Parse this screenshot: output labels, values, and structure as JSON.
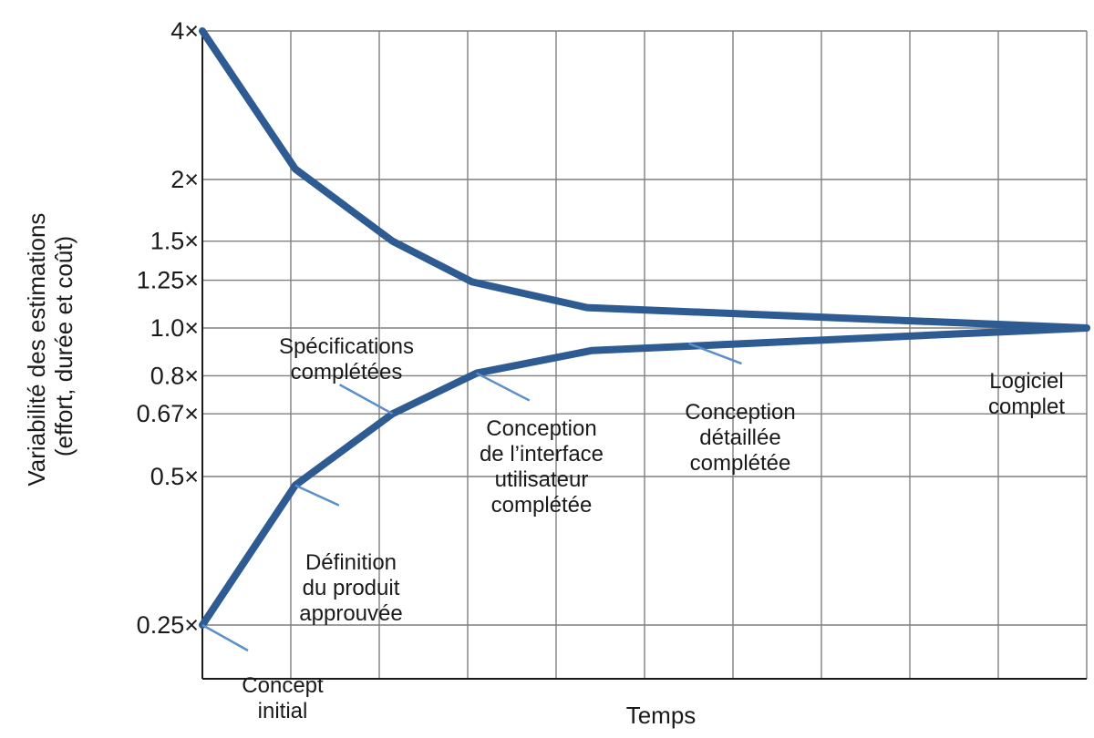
{
  "chart_data": {
    "type": "line",
    "xlabel": "Temps",
    "ylabel_lines": [
      "Variabilité des estimations",
      "(effort, durée et coût)"
    ],
    "y_scale": "log",
    "ylim": [
      0.25,
      4
    ],
    "y_ticks": [
      4,
      2,
      1.5,
      1.25,
      1.0,
      0.8,
      0.67,
      0.5,
      0.25
    ],
    "y_tick_labels": [
      "4×",
      "2×",
      "1.5×",
      "1.25×",
      "1.0×",
      "0.8×",
      "0.67×",
      "0.5×",
      "0.25×"
    ],
    "x_range": [
      0,
      10
    ],
    "grid": true,
    "colors": {
      "series": "#2d5b92",
      "pointer": "#5a8fc7",
      "grid": "#7f7f7f",
      "text": "#1a1a1a"
    },
    "series": [
      {
        "x": [
          0,
          1.05,
          2.15,
          3.05,
          4.35,
          10
        ],
        "values": [
          4,
          2.1,
          1.5,
          1.24,
          1.1,
          1.0
        ]
      },
      {
        "x": [
          0,
          1.05,
          2.15,
          3.1,
          4.4,
          10
        ],
        "values": [
          0.25,
          0.48,
          0.67,
          0.81,
          0.9,
          1.0
        ]
      }
    ],
    "milestones": [
      {
        "lines": [
          "Concept",
          "initial"
        ],
        "x": 0,
        "y": 0.25
      },
      {
        "lines": [
          "Définition",
          "du produit",
          "approuvée"
        ],
        "x": 1.05,
        "y": 0.48
      },
      {
        "lines": [
          "Spécifications",
          "complétées"
        ],
        "x": 2.15,
        "y": 0.67
      },
      {
        "lines": [
          "Conception",
          "de l’interface",
          "utilisateur",
          "complétée"
        ],
        "x": 3.1,
        "y": 0.81
      },
      {
        "lines": [
          "Conception",
          "détaillée",
          "complétée"
        ],
        "x": 5.5,
        "y": 0.93
      },
      {
        "lines": [
          "Logiciel",
          "complet"
        ],
        "x": 10,
        "y": 1.0
      }
    ]
  }
}
